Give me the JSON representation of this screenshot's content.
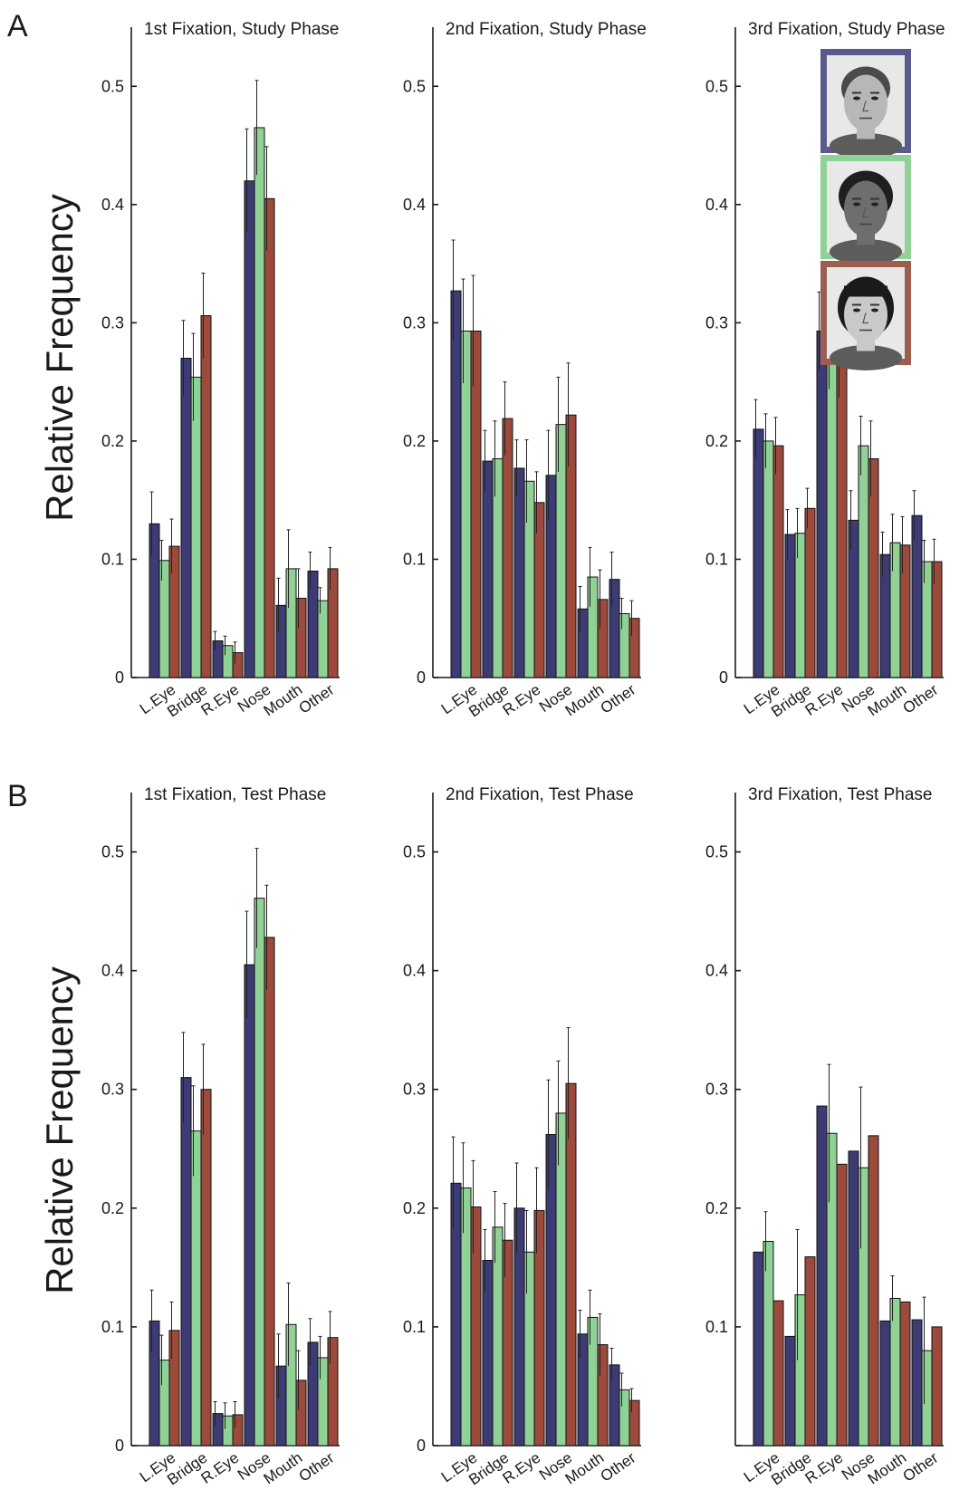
{
  "figure": {
    "panel_labels": [
      "A",
      "B"
    ],
    "ylabel": "Relative Frequency"
  },
  "colors": {
    "series": [
      "#3d3b73",
      "#90d196",
      "#9b4a3c"
    ],
    "axis": "#1a1a1a",
    "error_bar": "#222222"
  },
  "inset": {
    "faces": [
      {
        "icon": "face-photo-caucasian-male-icon",
        "frame_color": "#5a5a8c"
      },
      {
        "icon": "face-photo-african-female-icon",
        "frame_color": "#90d196"
      },
      {
        "icon": "face-photo-asian-male-icon",
        "frame_color": "#9b5e51"
      }
    ]
  },
  "chart_data": [
    {
      "type": "bar",
      "panel": "A",
      "row": 0,
      "col": 0,
      "title": "1st Fixation, Study Phase",
      "categories": [
        "L.Eye",
        "Bridge",
        "R.Eye",
        "Nose",
        "Mouth",
        "Other"
      ],
      "ylim": [
        0,
        0.55
      ],
      "yticks": [
        "0",
        "0.1",
        "0.2",
        "0.3",
        "0.4",
        "0.5"
      ],
      "series": [
        {
          "values": [
            0.13,
            0.27,
            0.031,
            0.42,
            0.061,
            0.09
          ],
          "errors": [
            0.027,
            0.032,
            0.008,
            0.044,
            0.023,
            0.016
          ]
        },
        {
          "values": [
            0.099,
            0.254,
            0.027,
            0.465,
            0.092,
            0.065
          ],
          "errors": [
            0.017,
            0.037,
            0.008,
            0.04,
            0.033,
            0.011
          ]
        },
        {
          "values": [
            0.111,
            0.306,
            0.021,
            0.405,
            0.067,
            0.092
          ],
          "errors": [
            0.023,
            0.036,
            0.009,
            0.044,
            0.025,
            0.018
          ]
        }
      ]
    },
    {
      "type": "bar",
      "panel": "A",
      "row": 0,
      "col": 1,
      "title": "2nd Fixation, Study Phase",
      "categories": [
        "L.Eye",
        "Bridge",
        "R.Eye",
        "Nose",
        "Mouth",
        "Other"
      ],
      "ylim": [
        0,
        0.55
      ],
      "yticks": [
        "0",
        "0.1",
        "0.2",
        "0.3",
        "0.4",
        "0.5"
      ],
      "series": [
        {
          "values": [
            0.327,
            0.183,
            0.177,
            0.171,
            0.058,
            0.083
          ],
          "errors": [
            0.043,
            0.026,
            0.024,
            0.038,
            0.019,
            0.023
          ]
        },
        {
          "values": [
            0.293,
            0.185,
            0.166,
            0.214,
            0.085,
            0.054
          ],
          "errors": [
            0.044,
            0.032,
            0.035,
            0.04,
            0.025,
            0.013
          ]
        },
        {
          "values": [
            0.293,
            0.219,
            0.148,
            0.222,
            0.066,
            0.05
          ],
          "errors": [
            0.047,
            0.031,
            0.026,
            0.044,
            0.025,
            0.015
          ]
        }
      ]
    },
    {
      "type": "bar",
      "panel": "A",
      "row": 0,
      "col": 2,
      "title": "3rd Fixation, Study Phase",
      "categories": [
        "L.Eye",
        "Bridge",
        "R.Eye",
        "Nose",
        "Mouth",
        "Other"
      ],
      "ylim": [
        0,
        0.55
      ],
      "yticks": [
        "0",
        "0.1",
        "0.2",
        "0.3",
        "0.4",
        "0.5"
      ],
      "series": [
        {
          "values": [
            0.21,
            0.121,
            0.293,
            0.133,
            0.104,
            0.137
          ],
          "errors": [
            0.025,
            0.021,
            0.033,
            0.025,
            0.019,
            0.021
          ]
        },
        {
          "values": [
            0.2,
            0.122,
            0.269,
            0.196,
            0.114,
            0.098
          ],
          "errors": [
            0.023,
            0.021,
            0.025,
            0.025,
            0.024,
            0.018
          ]
        },
        {
          "values": [
            0.196,
            0.143,
            0.264,
            0.185,
            0.112,
            0.098
          ],
          "errors": [
            0.024,
            0.017,
            0.027,
            0.032,
            0.024,
            0.019
          ]
        }
      ]
    },
    {
      "type": "bar",
      "panel": "B",
      "row": 1,
      "col": 0,
      "title": "1st Fixation, Test Phase",
      "categories": [
        "L.Eye",
        "Bridge",
        "R.Eye",
        "Nose",
        "Mouth",
        "Other"
      ],
      "ylim": [
        0,
        0.55
      ],
      "yticks": [
        "0",
        "0.1",
        "0.2",
        "0.3",
        "0.4",
        "0.5"
      ],
      "series": [
        {
          "values": [
            0.105,
            0.31,
            0.027,
            0.405,
            0.067,
            0.087
          ],
          "errors": [
            0.026,
            0.038,
            0.01,
            0.045,
            0.027,
            0.02
          ]
        },
        {
          "values": [
            0.072,
            0.265,
            0.025,
            0.461,
            0.102,
            0.074
          ],
          "errors": [
            0.021,
            0.038,
            0.011,
            0.042,
            0.035,
            0.018
          ]
        },
        {
          "values": [
            0.097,
            0.3,
            0.026,
            0.428,
            0.055,
            0.091
          ],
          "errors": [
            0.024,
            0.038,
            0.011,
            0.044,
            0.025,
            0.022
          ]
        }
      ]
    },
    {
      "type": "bar",
      "panel": "B",
      "row": 1,
      "col": 1,
      "title": "2nd Fixation, Test Phase",
      "categories": [
        "L.Eye",
        "Bridge",
        "R.Eye",
        "Nose",
        "Mouth",
        "Other"
      ],
      "ylim": [
        0,
        0.55
      ],
      "yticks": [
        "0",
        "0.1",
        "0.2",
        "0.3",
        "0.4",
        "0.5"
      ],
      "series": [
        {
          "values": [
            0.221,
            0.156,
            0.2,
            0.262,
            0.094,
            0.068
          ],
          "errors": [
            0.039,
            0.026,
            0.038,
            0.046,
            0.02,
            0.014
          ]
        },
        {
          "values": [
            0.217,
            0.184,
            0.163,
            0.28,
            0.108,
            0.047
          ],
          "errors": [
            0.038,
            0.03,
            0.035,
            0.044,
            0.023,
            0.014
          ]
        },
        {
          "values": [
            0.201,
            0.173,
            0.198,
            0.305,
            0.085,
            0.038
          ],
          "errors": [
            0.039,
            0.031,
            0.036,
            0.047,
            0.026,
            0.01
          ]
        }
      ]
    },
    {
      "type": "bar",
      "panel": "B",
      "row": 1,
      "col": 2,
      "title": "3rd Fixation, Test Phase",
      "categories": [
        "L.Eye",
        "Bridge",
        "R.Eye",
        "Nose",
        "Mouth",
        "Other"
      ],
      "ylim": [
        0,
        0.55
      ],
      "yticks": [
        "",
        "0.1",
        "0.2",
        "0.3",
        "0.4",
        "0.5"
      ],
      "series": [
        {
          "values": [
            0.163,
            0.092,
            0.286,
            0.248,
            0.105,
            0.106
          ],
          "errors": [
            0,
            0,
            0,
            0,
            0,
            0
          ]
        },
        {
          "values": [
            0.172,
            0.127,
            0.263,
            0.234,
            0.124,
            0.08
          ],
          "errors": [
            0.025,
            0.055,
            0.058,
            0.068,
            0.019,
            0.045
          ]
        },
        {
          "values": [
            0.122,
            0.159,
            0.237,
            0.261,
            0.121,
            0.1
          ],
          "errors": [
            0,
            0,
            0,
            0,
            0,
            0
          ]
        }
      ]
    }
  ]
}
